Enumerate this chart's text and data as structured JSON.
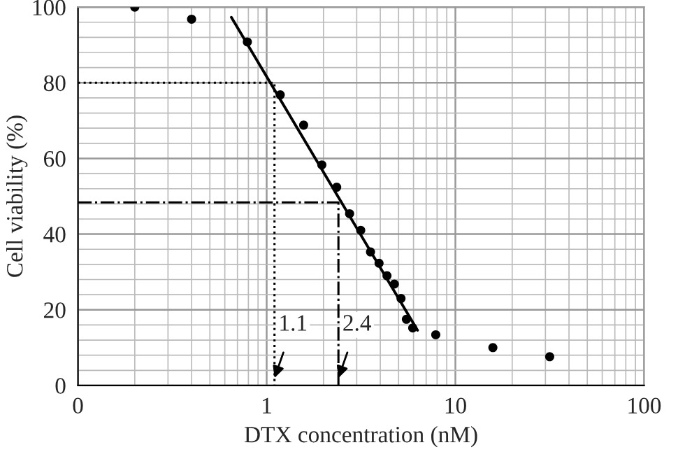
{
  "chart_data": {
    "type": "scatter",
    "xlabel": "DTX concentration (nM)",
    "ylabel": "Cell viability (%)",
    "log": "x",
    "grid": true,
    "xlim": [
      0.1,
      100
    ],
    "xticks": [
      {
        "value": 0.1,
        "label": "0"
      },
      1,
      10,
      100
    ],
    "ylim": [
      0,
      100
    ],
    "yticks": [
      0,
      20,
      40,
      60,
      80,
      100
    ],
    "series": [
      {
        "color": "#000000",
        "marker": "circle",
        "x": [
          0.2,
          0.4,
          0.79,
          1.18,
          1.57,
          1.96,
          2.35,
          2.75,
          3.15,
          3.55,
          3.94,
          4.34,
          4.75,
          5.15,
          5.5,
          5.94,
          7.87,
          15.8,
          31.6
        ],
        "values": [
          100,
          96.8,
          90.8,
          76.8,
          68.8,
          58.3,
          52.4,
          45.4,
          41.0,
          35.3,
          32.3,
          29.0,
          26.8,
          23.0,
          17.5,
          15.2,
          13.4,
          10.0,
          7.6
        ]
      },
      {
        "type": "line",
        "color": "#000000",
        "line_style": "solid",
        "x": [
          0.65,
          6.3
        ],
        "values": [
          97.3,
          14.6
        ]
      },
      {
        "type": "line",
        "color": "#000000",
        "line_style": "dotted",
        "x": [
          0.1,
          1.1,
          1.1
        ],
        "values": [
          80,
          80,
          0
        ]
      },
      {
        "type": "line",
        "color": "#000000",
        "line_style": "dashdot",
        "x": [
          0.1,
          2.4,
          2.4
        ],
        "values": [
          48.4,
          48.4,
          0
        ]
      }
    ],
    "annotations": [
      {
        "text": "1.1",
        "x": 1.1,
        "y": 2
      },
      {
        "text": "2.4",
        "x": 2.4,
        "y": 2
      }
    ]
  }
}
